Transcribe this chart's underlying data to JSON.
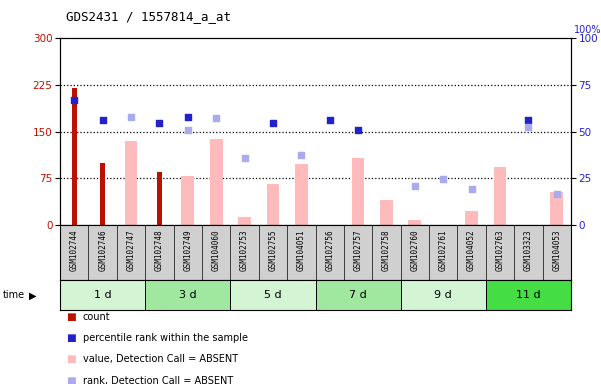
{
  "title": "GDS2431 / 1557814_a_at",
  "samples": [
    "GSM102744",
    "GSM102746",
    "GSM102747",
    "GSM102748",
    "GSM102749",
    "GSM104060",
    "GSM102753",
    "GSM102755",
    "GSM104051",
    "GSM102756",
    "GSM102757",
    "GSM102758",
    "GSM102760",
    "GSM102761",
    "GSM104052",
    "GSM102763",
    "GSM103323",
    "GSM104053"
  ],
  "time_groups": [
    {
      "label": "1 d",
      "start": 0,
      "end": 3,
      "color": "#d4f5d4"
    },
    {
      "label": "3 d",
      "start": 3,
      "end": 6,
      "color": "#a0e8a0"
    },
    {
      "label": "5 d",
      "start": 6,
      "end": 9,
      "color": "#d4f5d4"
    },
    {
      "label": "7 d",
      "start": 9,
      "end": 12,
      "color": "#a0e8a0"
    },
    {
      "label": "9 d",
      "start": 12,
      "end": 15,
      "color": "#d4f5d4"
    },
    {
      "label": "11 d",
      "start": 15,
      "end": 18,
      "color": "#44dd44"
    }
  ],
  "count_values": [
    220,
    100,
    0,
    85,
    0,
    0,
    0,
    0,
    0,
    0,
    0,
    0,
    0,
    0,
    0,
    0,
    0,
    0
  ],
  "percentile_rank": [
    200,
    168,
    0,
    163,
    173,
    0,
    0,
    163,
    0,
    168,
    152,
    0,
    0,
    0,
    0,
    0,
    168,
    0
  ],
  "absent_value": [
    0,
    0,
    135,
    0,
    78,
    138,
    12,
    65,
    98,
    0,
    108,
    40,
    8,
    0,
    22,
    93,
    0,
    52
  ],
  "absent_rank": [
    0,
    0,
    173,
    0,
    153,
    172,
    108,
    0,
    112,
    0,
    0,
    0,
    63,
    73,
    58,
    0,
    158,
    50
  ],
  "ylim_left": [
    0,
    300
  ],
  "ylim_right": [
    0,
    100
  ],
  "yticks_left": [
    0,
    75,
    150,
    225,
    300
  ],
  "yticks_right": [
    0,
    25,
    50,
    75,
    100
  ],
  "hlines": [
    75,
    150,
    225
  ],
  "count_color": "#bb1100",
  "percentile_color": "#2222cc",
  "absent_value_color": "#ffbbbb",
  "absent_rank_color": "#aaaaee",
  "sample_bg_color": "#d0d0d0",
  "plot_bg_color": "#ffffff"
}
